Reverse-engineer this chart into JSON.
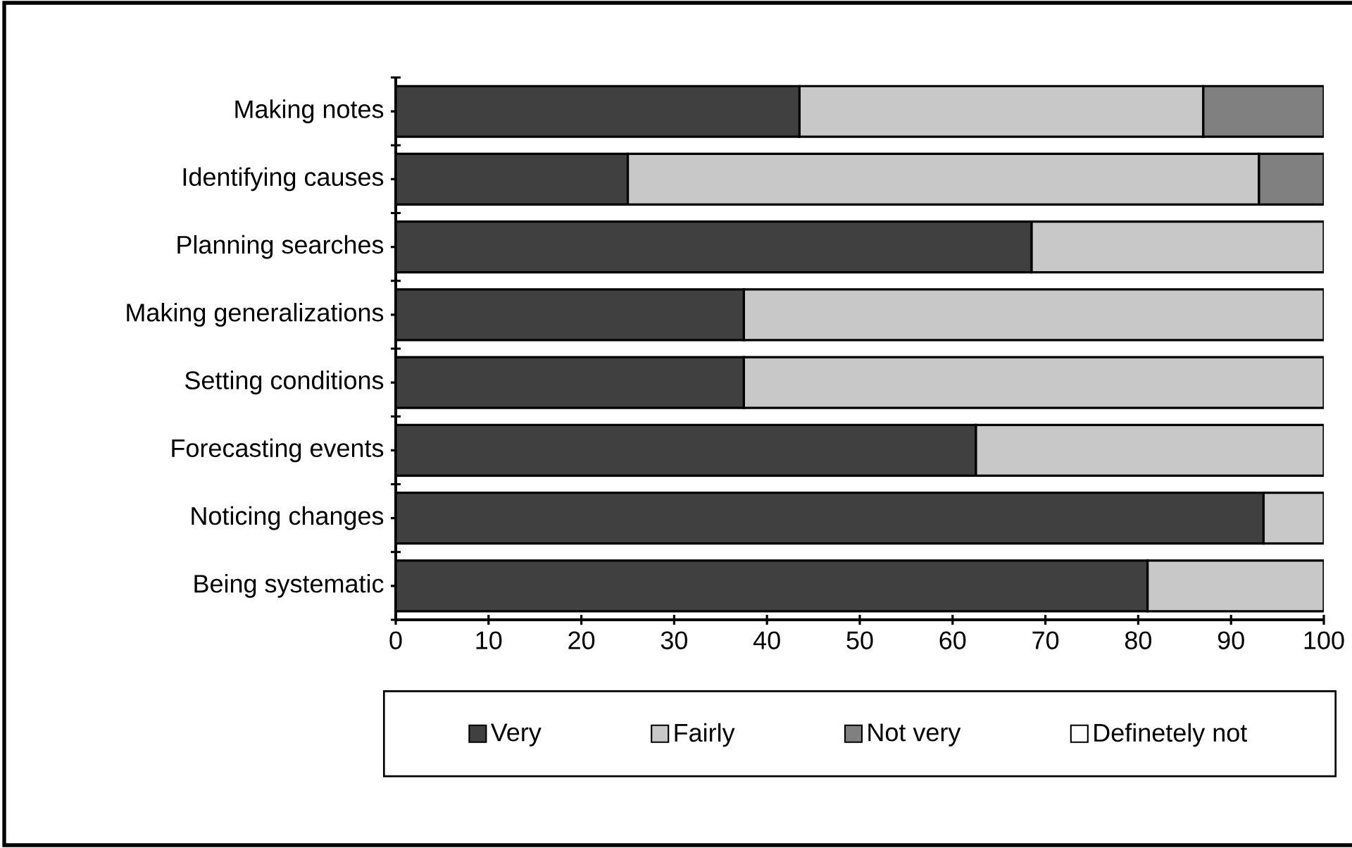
{
  "chart_data": {
    "type": "bar",
    "orientation": "horizontal",
    "stacked": true,
    "categories": [
      "Making notes",
      "Identifying causes",
      "Planning searches",
      "Making generalizations",
      "Setting conditions",
      "Forecasting events",
      "Noticing changes",
      "Being systematic"
    ],
    "series": [
      {
        "name": "Very",
        "color": "#404040",
        "values": [
          43.5,
          25,
          68.5,
          37.5,
          37.5,
          62.5,
          93.5,
          81
        ]
      },
      {
        "name": "Fairly",
        "color": "#c8c8c8",
        "values": [
          43.5,
          68,
          31.5,
          62.5,
          62.5,
          37.5,
          6.5,
          19
        ]
      },
      {
        "name": "Not very",
        "color": "#808080",
        "values": [
          13,
          7,
          0,
          0,
          0,
          0,
          0,
          0
        ]
      },
      {
        "name": "Definetely not",
        "color": "#ffffff",
        "values": [
          0,
          0,
          0,
          0,
          0,
          0,
          0,
          0
        ]
      }
    ],
    "xlim": [
      0,
      100
    ],
    "xticks": [
      0,
      10,
      20,
      30,
      40,
      50,
      60,
      70,
      80,
      90,
      100
    ],
    "legend": "bottom",
    "grid": false
  }
}
